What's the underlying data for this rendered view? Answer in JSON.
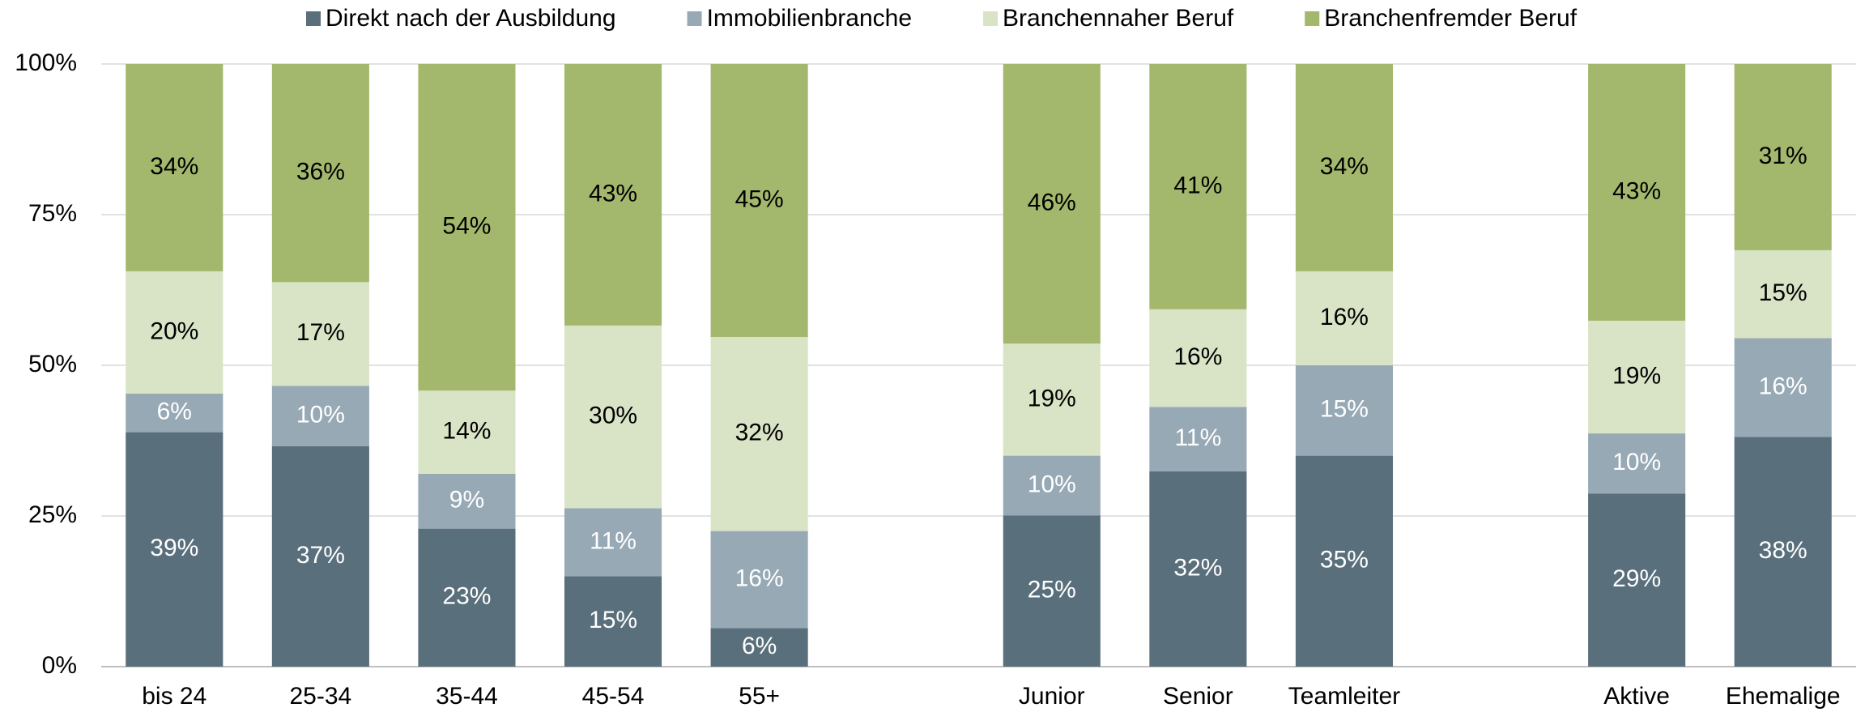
{
  "chart_data": {
    "type": "stacked_bar",
    "categories": [
      "bis 24",
      "25-34",
      "35-44",
      "45-54",
      "55+",
      null,
      "Junior",
      "Senior",
      "Teamleiter",
      null,
      "Aktive",
      "Ehemalige"
    ],
    "series": [
      {
        "name": "Direkt nach der Ausbildung",
        "color": "#5a6f7c",
        "label_color": "#ffffff",
        "values": [
          38.9,
          36.6,
          22.9,
          15.0,
          6.4,
          null,
          25.1,
          32.4,
          35.0,
          null,
          28.7,
          38.1
        ],
        "value_labels": [
          "39%",
          "37%",
          "23%",
          "15%",
          "6%",
          null,
          "25%",
          "32%",
          "35%",
          null,
          "29%",
          "38%"
        ]
      },
      {
        "name": "Immobilienbranche",
        "color": "#97a9b5",
        "label_color": "#ffffff",
        "values": [
          6.4,
          10.0,
          9.1,
          11.3,
          16.1,
          null,
          9.9,
          10.7,
          15.0,
          null,
          10.0,
          16.4
        ],
        "value_labels": [
          "6%",
          "10%",
          "9%",
          "11%",
          "16%",
          null,
          "10%",
          "11%",
          "15%",
          null,
          "10%",
          "16%"
        ]
      },
      {
        "name": "Branchennaher Beruf",
        "color": "#d9e3c6",
        "label_color": "#000000",
        "values": [
          20.3,
          17.2,
          13.8,
          30.3,
          32.2,
          null,
          18.6,
          16.2,
          15.6,
          null,
          18.7,
          14.6
        ],
        "value_labels": [
          "20%",
          "17%",
          "14%",
          "30%",
          "32%",
          null,
          "19%",
          "16%",
          "16%",
          null,
          "19%",
          "15%"
        ]
      },
      {
        "name": "Branchenfremder Beruf",
        "color": "#a3b86c",
        "label_color": "#000000",
        "values": [
          34.4,
          36.2,
          54.2,
          43.4,
          45.3,
          null,
          46.4,
          40.7,
          34.4,
          null,
          42.6,
          30.9
        ],
        "value_labels": [
          "34%",
          "36%",
          "54%",
          "43%",
          "45%",
          null,
          "46%",
          "41%",
          "34%",
          null,
          "43%",
          "31%"
        ]
      }
    ],
    "ylim": [
      0,
      100
    ],
    "yticks": [
      {
        "value": 0,
        "label": "0%"
      },
      {
        "value": 25,
        "label": "25%"
      },
      {
        "value": 50,
        "label": "50%"
      },
      {
        "value": 75,
        "label": "75%"
      },
      {
        "value": 100,
        "label": "100%"
      }
    ],
    "grid": true,
    "legend": "top"
  }
}
